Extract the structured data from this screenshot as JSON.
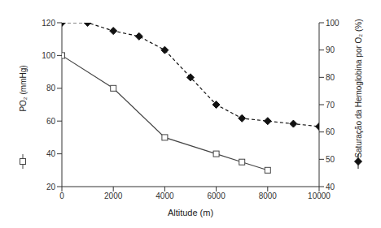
{
  "chart_data": {
    "type": "line",
    "x_label": "Altitude (m)",
    "y_label": "PO₂ (mmHg)",
    "y2_label": "Saturação da Hemoglobina por O₂ (%)",
    "xlim": [
      0,
      10000
    ],
    "xticks": [
      0,
      2000,
      4000,
      6000,
      8000,
      10000
    ],
    "ylim": [
      20,
      120
    ],
    "yticks": [
      20,
      40,
      60,
      80,
      100,
      120
    ],
    "y2lim": [
      40,
      100
    ],
    "y2ticks": [
      40,
      50,
      60,
      70,
      80,
      90,
      100
    ],
    "grid": false,
    "series": [
      {
        "name": "PO₂",
        "color": "#444444",
        "marker": "square",
        "line_style": "solid",
        "x": [
          0,
          2000,
          4000,
          6000,
          7000,
          8000
        ],
        "values": [
          100,
          80,
          50,
          40,
          35,
          30
        ]
      },
      {
        "name": "Saturação",
        "color": "#111111",
        "marker": "diamond",
        "line_style": "dashed",
        "axis": "y2",
        "x": [
          0,
          1000,
          2000,
          3000,
          4000,
          5000,
          6000,
          7000,
          8000,
          9000,
          10000
        ],
        "values": [
          100,
          100,
          97,
          95,
          90,
          80,
          70,
          65,
          64,
          63,
          62
        ]
      }
    ]
  }
}
